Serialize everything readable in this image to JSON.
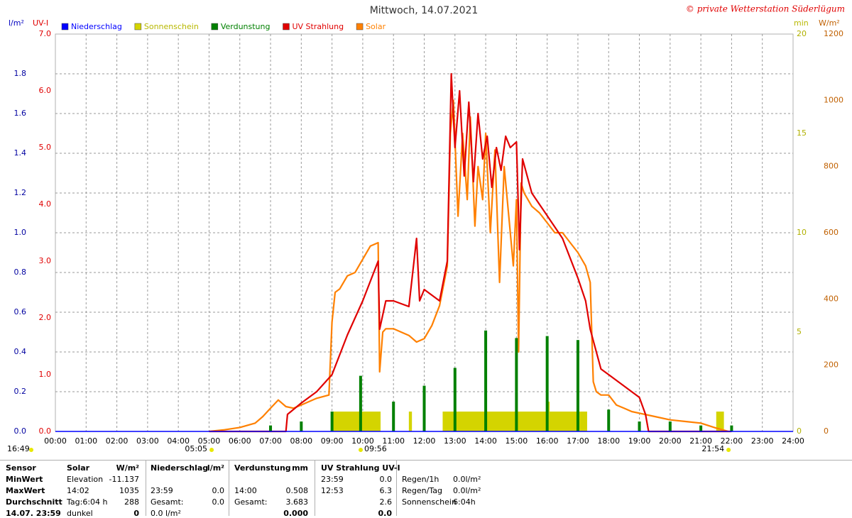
{
  "chart_data": {
    "type": "line",
    "title": "Mittwoch, 14.07.2021",
    "copyright": "© private Wetterstation Süderlügum",
    "xlim": [
      0,
      24
    ],
    "xticks": [
      {
        "value": 0,
        "label": "00:00"
      },
      {
        "value": 1,
        "label": "01:00"
      },
      {
        "value": 2,
        "label": "02:00"
      },
      {
        "value": 3,
        "label": "03:00"
      },
      {
        "value": 4,
        "label": "04:00"
      },
      {
        "value": 5,
        "label": "05:00"
      },
      {
        "value": 6,
        "label": "06:00"
      },
      {
        "value": 7,
        "label": "07:00"
      },
      {
        "value": 8,
        "label": "08:00"
      },
      {
        "value": 9,
        "label": "09:00"
      },
      {
        "value": 10,
        "label": "10:00"
      },
      {
        "value": 11,
        "label": "11:00"
      },
      {
        "value": 12,
        "label": "12:00"
      },
      {
        "value": 13,
        "label": "13:00"
      },
      {
        "value": 14,
        "label": "14:00"
      },
      {
        "value": 15,
        "label": "15:00"
      },
      {
        "value": 16,
        "label": "16:00"
      },
      {
        "value": 17,
        "label": "17:00"
      },
      {
        "value": 18,
        "label": "18:00"
      },
      {
        "value": 19,
        "label": "19:00"
      },
      {
        "value": 20,
        "label": "20:00"
      },
      {
        "value": 21,
        "label": "21:00"
      },
      {
        "value": 22,
        "label": "22:00"
      },
      {
        "value": 23,
        "label": "23:00"
      },
      {
        "value": 24,
        "label": "24:00"
      }
    ],
    "ylabel": "l/m²",
    "ylim": [
      0,
      2
    ],
    "yticks": [
      {
        "value": 0,
        "label": "0.0"
      },
      0.2,
      0.4,
      0.6,
      0.8,
      {
        "value": 1,
        "label": "1.0"
      },
      1.2,
      1.4,
      1.6,
      1.8
    ],
    "y2label": "UV-I",
    "y2lim": [
      0,
      7
    ],
    "y2ticks": [
      {
        "value": 0,
        "label": "0.0"
      },
      {
        "value": 1,
        "label": "1.0"
      },
      {
        "value": 2,
        "label": "2.0"
      },
      {
        "value": 3,
        "label": "3.0"
      },
      {
        "value": 4,
        "label": "4.0"
      },
      {
        "value": 5,
        "label": "5.0"
      },
      {
        "value": 6,
        "label": "6.0"
      },
      {
        "value": 7,
        "label": "7.0"
      }
    ],
    "y3label": "min",
    "y3lim": [
      0,
      20
    ],
    "y3ticks": [
      0,
      5,
      10,
      15,
      20
    ],
    "y4label": "W/m²",
    "y4lim": [
      0,
      1200
    ],
    "y4ticks": [
      0,
      200,
      400,
      600,
      800,
      1000,
      1200
    ],
    "grid": true,
    "series": [
      {
        "name": "Niederschlag",
        "color": "#0000ff",
        "kind": "bar",
        "axis": "y"
      },
      {
        "name": "Sonnenschein",
        "color": "#d4d400",
        "kind": "span",
        "axis": "y3",
        "x": [
          9.0,
          11.5,
          12.6,
          16.0,
          21.5
        ],
        "x_end": [
          10.58,
          11.6,
          17.3,
          16.08,
          21.75
        ],
        "values": [
          1,
          1,
          1,
          1.5,
          1
        ]
      },
      {
        "name": "Verdunstung",
        "color": "#008000",
        "kind": "bar",
        "axis": "y",
        "x": [
          7.0,
          8.0,
          9.0,
          9.93,
          11.0,
          12.0,
          13.0,
          14.0,
          15.0,
          16.0,
          17.0,
          18.0,
          19.0,
          20.0,
          21.0,
          22.0
        ],
        "values": [
          0.03,
          0.05,
          0.1,
          0.28,
          0.15,
          0.23,
          0.32,
          0.508,
          0.47,
          0.48,
          0.46,
          0.11,
          0.05,
          0.05,
          0.03,
          0.03
        ]
      },
      {
        "name": "UV Strahlung",
        "color": "#e00000",
        "kind": "line",
        "axis": "y2",
        "x": [
          5.0,
          7.5,
          7.55,
          8.0,
          8.5,
          9.0,
          9.5,
          10.0,
          10.5,
          10.55,
          10.75,
          11.0,
          11.5,
          11.75,
          11.85,
          12.0,
          12.25,
          12.5,
          12.75,
          12.88,
          13.0,
          13.15,
          13.3,
          13.45,
          13.6,
          13.75,
          13.9,
          14.05,
          14.2,
          14.35,
          14.5,
          14.65,
          14.8,
          15.0,
          15.1,
          15.2,
          15.5,
          15.75,
          16.0,
          16.5,
          17.0,
          17.25,
          17.4,
          17.5,
          17.75,
          18.0,
          18.5,
          19.0,
          19.2,
          19.3,
          22.0
        ],
        "values": [
          0,
          0,
          0.3,
          0.5,
          0.7,
          1.0,
          1.7,
          2.3,
          3.0,
          1.8,
          2.3,
          2.3,
          2.2,
          3.4,
          2.3,
          2.5,
          2.4,
          2.3,
          3.0,
          6.3,
          5.0,
          6.0,
          4.5,
          5.8,
          4.4,
          5.6,
          4.8,
          5.2,
          4.3,
          5.0,
          4.6,
          5.2,
          5.0,
          5.1,
          3.2,
          4.8,
          4.2,
          4.0,
          3.8,
          3.4,
          2.7,
          2.3,
          1.8,
          1.6,
          1.1,
          1.0,
          0.8,
          0.6,
          0.3,
          0,
          0
        ]
      },
      {
        "name": "Solar",
        "color": "#ff8000",
        "kind": "line",
        "axis": "y4",
        "x": [
          5.0,
          5.5,
          6.0,
          6.5,
          6.75,
          7.0,
          7.25,
          7.5,
          7.75,
          8.0,
          8.5,
          8.9,
          9.0,
          9.1,
          9.25,
          9.5,
          9.75,
          10.0,
          10.25,
          10.5,
          10.55,
          10.65,
          10.75,
          11.0,
          11.25,
          11.5,
          11.75,
          12.0,
          12.25,
          12.5,
          12.75,
          12.85,
          12.95,
          13.1,
          13.25,
          13.4,
          13.5,
          13.65,
          13.75,
          13.9,
          14.0,
          14.15,
          14.3,
          14.45,
          14.6,
          14.75,
          14.9,
          15.0,
          15.07,
          15.15,
          15.25,
          15.5,
          15.75,
          16.0,
          16.25,
          16.5,
          16.75,
          17.0,
          17.25,
          17.4,
          17.5,
          17.6,
          17.75,
          18.0,
          18.25,
          18.5,
          18.75,
          19.0,
          19.5,
          20.0,
          20.5,
          21.0,
          21.5,
          21.9
        ],
        "values": [
          0,
          5,
          12,
          25,
          45,
          70,
          95,
          75,
          70,
          80,
          100,
          110,
          330,
          420,
          430,
          470,
          480,
          520,
          560,
          570,
          180,
          300,
          310,
          310,
          300,
          290,
          270,
          280,
          320,
          380,
          500,
          900,
          1000,
          650,
          900,
          700,
          950,
          620,
          800,
          700,
          900,
          600,
          850,
          450,
          800,
          650,
          500,
          700,
          240,
          750,
          720,
          680,
          660,
          630,
          600,
          600,
          570,
          540,
          500,
          450,
          150,
          120,
          110,
          110,
          80,
          70,
          60,
          55,
          45,
          35,
          30,
          25,
          10,
          0
        ]
      }
    ],
    "corner_label": "16:49",
    "annotations": [
      {
        "x": 5.083,
        "label": "05:05"
      },
      {
        "x": 9.933,
        "label": "09:56"
      },
      {
        "x": 21.9,
        "label": "21:54"
      }
    ]
  },
  "table": {
    "rows": [
      [
        "Sensor",
        "Solar",
        "W/m²",
        "Niederschlag",
        "l/m²",
        "Verdunstung",
        "mm",
        "UV Strahlung UV-I",
        null,
        null,
        null
      ],
      [
        "MinWert",
        "Elevation",
        "-11.137",
        null,
        null,
        null,
        null,
        "23:59",
        "0.0",
        "Regen/1h",
        "0.0l/m²"
      ],
      [
        "MaxWert",
        "14:02",
        "1035",
        "23:59",
        "0.0",
        "14:00",
        "0.508",
        "12:53",
        "6.3",
        "Regen/Tag",
        "0.0l/m²"
      ],
      [
        "Durchschnitt",
        "Tag:6:04 h",
        "288",
        "Gesamt:",
        "0.0",
        "Gesamt:",
        "3.683",
        null,
        "2.6",
        "Sonnenschein",
        "6:04h"
      ],
      [
        "14.07. 23:59",
        "dunkel",
        "0",
        "0.0 l/m²",
        null,
        null,
        "0.000",
        null,
        "0.0",
        null,
        null
      ]
    ]
  }
}
